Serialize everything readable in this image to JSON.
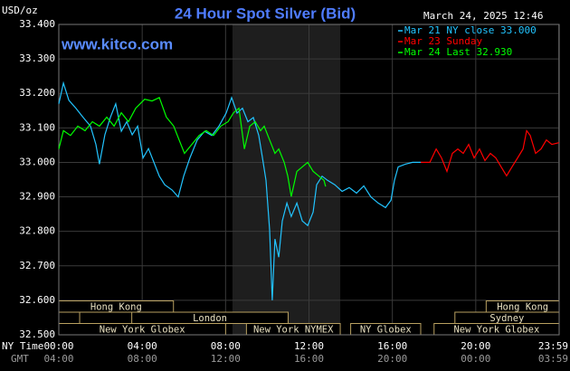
{
  "chart_data": {
    "type": "line",
    "title": "24 Hour Spot Silver (Bid)",
    "unit_label": "USD/oz",
    "timestamp": "March 24, 2025 12:46",
    "site": "www.kitco.com",
    "x_row_labels": [
      "NY Time",
      "GMT"
    ],
    "xlim": [
      0,
      24
    ],
    "xticks": [
      {
        "value": 0,
        "label": "00:00",
        "gmt": "04:00"
      },
      {
        "value": 4,
        "label": "04:00",
        "gmt": "08:00"
      },
      {
        "value": 8,
        "label": "08:00",
        "gmt": "12:00"
      },
      {
        "value": 12,
        "label": "12:00",
        "gmt": "16:00"
      },
      {
        "value": 16,
        "label": "16:00",
        "gmt": "20:00"
      },
      {
        "value": 20,
        "label": "20:00",
        "gmt": "00:00"
      },
      {
        "value": 23.983,
        "label": "23:59",
        "gmt": "03:59"
      }
    ],
    "ylim": [
      32.5,
      33.4
    ],
    "yticks": [
      {
        "value": 32.5,
        "label": "32.500"
      },
      {
        "value": 32.6,
        "label": "32.600"
      },
      {
        "value": 32.7,
        "label": "32.700"
      },
      {
        "value": 32.8,
        "label": "32.800"
      },
      {
        "value": 32.9,
        "label": "32.900"
      },
      {
        "value": 33.0,
        "label": "33.000"
      },
      {
        "value": 33.1,
        "label": "33.100"
      },
      {
        "value": 33.2,
        "label": "33.200"
      },
      {
        "value": 33.3,
        "label": "33.300"
      },
      {
        "value": 33.4,
        "label": "33.400"
      }
    ],
    "grid": true,
    "legend": "top-right",
    "shade": [
      8.33,
      13.5
    ],
    "sessions": [
      [
        {
          "label": "Hong Kong",
          "start": 0,
          "end": 5.5
        },
        {
          "label": "Hong Kong",
          "start": 20.5,
          "end": 24
        }
      ],
      [
        {
          "start": 0,
          "end": 1
        },
        {
          "label": "London",
          "start": 3.5,
          "end": 11
        },
        {
          "label": "Sydney",
          "start": 19,
          "end": 24
        }
      ],
      [
        {
          "label": "New York Globex",
          "start": 0,
          "end": 8
        },
        {
          "label": "New York NYMEX",
          "start": 9,
          "end": 13.5
        },
        {
          "label": "NY Globex",
          "start": 14,
          "end": 17.36
        },
        {
          "label": "New York Globex",
          "start": 18,
          "end": 24
        }
      ]
    ],
    "series": [
      {
        "name": "Mar 21 NY close 33.000",
        "color": "#22c4ff",
        "x": [
          0,
          0.22,
          0.48,
          0.82,
          1.17,
          1.52,
          1.78,
          1.95,
          2.21,
          2.47,
          2.73,
          3.0,
          3.26,
          3.52,
          3.78,
          4.04,
          4.3,
          4.56,
          4.82,
          5.08,
          5.43,
          5.73,
          5.99,
          6.29,
          6.64,
          6.99,
          7.34,
          7.68,
          8.03,
          8.29,
          8.55,
          8.81,
          9.07,
          9.33,
          9.59,
          9.77,
          9.94,
          10.11,
          10.24,
          10.37,
          10.55,
          10.72,
          10.94,
          11.15,
          11.42,
          11.68,
          11.94,
          12.2,
          12.37,
          12.63,
          12.89,
          13.24,
          13.59,
          13.93,
          14.28,
          14.63,
          14.97,
          15.32,
          15.67,
          15.93,
          16.1,
          16.28,
          16.62,
          16.97,
          17.36
        ],
        "values": [
          33.17,
          33.23,
          33.18,
          33.157,
          33.13,
          33.105,
          33.052,
          32.995,
          33.08,
          33.13,
          33.17,
          33.09,
          33.118,
          33.08,
          33.105,
          33.013,
          33.04,
          33.0,
          32.96,
          32.935,
          32.92,
          32.9,
          32.96,
          33.013,
          33.065,
          33.09,
          33.078,
          33.105,
          33.143,
          33.188,
          33.143,
          33.157,
          33.118,
          33.13,
          33.078,
          33.013,
          32.948,
          32.804,
          32.6,
          32.778,
          32.725,
          32.83,
          32.882,
          32.843,
          32.882,
          32.83,
          32.817,
          32.856,
          32.935,
          32.96,
          32.948,
          32.935,
          32.916,
          32.927,
          32.911,
          32.932,
          32.9,
          32.882,
          32.869,
          32.89,
          32.948,
          32.987,
          32.995,
          33.0,
          33.0
        ]
      },
      {
        "name": "Mar 23 Sunday",
        "color": "#ff0000",
        "x": [
          17.36,
          17.8,
          18.1,
          18.36,
          18.62,
          18.88,
          19.14,
          19.4,
          19.66,
          19.92,
          20.18,
          20.44,
          20.7,
          20.96,
          21.22,
          21.48,
          21.74,
          22.01,
          22.27,
          22.44,
          22.61,
          22.87,
          23.13,
          23.39,
          23.65,
          23.99
        ],
        "values": [
          33.0,
          33.0,
          33.039,
          33.013,
          32.974,
          33.026,
          33.039,
          33.026,
          33.052,
          33.013,
          33.039,
          33.005,
          33.026,
          33.013,
          32.987,
          32.961,
          32.987,
          33.013,
          33.039,
          33.092,
          33.078,
          33.026,
          33.039,
          33.065,
          33.052,
          33.057
        ]
      },
      {
        "name": "Mar 24 Last 32.930",
        "color": "#00ff00",
        "x": [
          0,
          0.22,
          0.56,
          0.91,
          1.26,
          1.61,
          1.95,
          2.3,
          2.65,
          3.0,
          3.34,
          3.69,
          4.12,
          4.47,
          4.82,
          5.16,
          5.51,
          5.77,
          6.03,
          6.38,
          6.73,
          7.07,
          7.42,
          7.77,
          8.12,
          8.38,
          8.64,
          8.9,
          9.16,
          9.42,
          9.68,
          9.85,
          10.11,
          10.37,
          10.55,
          10.81,
          10.98,
          11.15,
          11.42,
          11.68,
          11.94,
          12.2,
          12.46,
          12.72,
          12.8
        ],
        "values": [
          33.039,
          33.092,
          33.078,
          33.105,
          33.092,
          33.118,
          33.105,
          33.131,
          33.105,
          33.144,
          33.118,
          33.157,
          33.183,
          33.178,
          33.188,
          33.131,
          33.105,
          33.065,
          33.026,
          33.052,
          33.078,
          33.092,
          33.078,
          33.105,
          33.118,
          33.144,
          33.157,
          33.039,
          33.105,
          33.118,
          33.092,
          33.105,
          33.065,
          33.026,
          33.039,
          33.0,
          32.961,
          32.901,
          32.974,
          32.987,
          33.0,
          32.974,
          32.961,
          32.948,
          32.93
        ]
      }
    ]
  }
}
